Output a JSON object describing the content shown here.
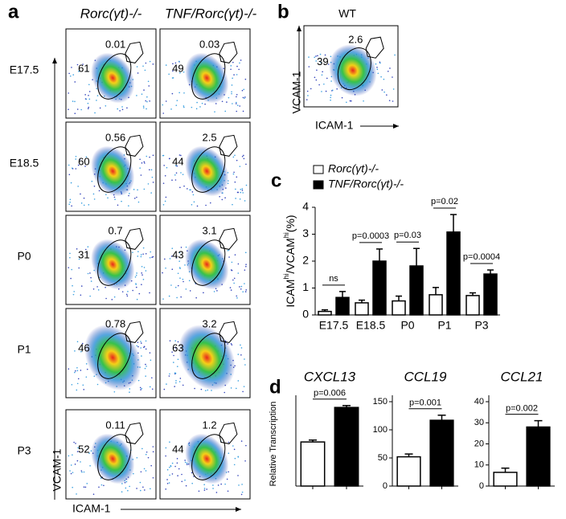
{
  "panel_labels": [
    "a",
    "b",
    "c",
    "d"
  ],
  "flow": {
    "columns": [
      "Rorc(γt)-/-",
      "TNF/Rorc(γt)-/-"
    ],
    "rows": [
      {
        "label": "E17.5",
        "gates": [
          [
            61,
            0.01
          ],
          [
            49,
            0.03
          ]
        ]
      },
      {
        "label": "E18.5",
        "gates": [
          [
            60,
            0.56
          ],
          [
            44,
            2.5
          ]
        ]
      },
      {
        "label": "P0",
        "gates": [
          [
            31,
            0.7
          ],
          [
            43,
            3.1
          ]
        ]
      },
      {
        "label": "P1",
        "gates": [
          [
            46,
            0.78
          ],
          [
            63,
            3.2
          ]
        ]
      },
      {
        "label": "P3",
        "gates": [
          [
            52,
            0.11
          ],
          [
            44,
            1.2
          ]
        ]
      }
    ],
    "y_axis": "VCAM-1",
    "x_axis": "ICAM-1",
    "wt": {
      "title": "WT",
      "gates": [
        39,
        2.6
      ],
      "y_axis": "VCAM-1",
      "x_axis": "ICAM-1"
    }
  },
  "chart_data": [
    {
      "type": "grouped-bar",
      "ylabel": [
        "ICAM",
        "hi",
        "/VCAM",
        "hi",
        "(%)"
      ],
      "categories": [
        "E17.5",
        "E18.5",
        "P0",
        "P1",
        "P3"
      ],
      "series": [
        {
          "name": "Rorc(γt)-/-",
          "color": "#ffffff",
          "values": [
            0.13,
            0.45,
            0.52,
            0.75,
            0.72
          ],
          "errors": [
            0.06,
            0.1,
            0.18,
            0.27,
            0.1
          ]
        },
        {
          "name": "TNF/Rorc(γt)-/-",
          "color": "#000000",
          "values": [
            0.65,
            2.0,
            1.82,
            3.08,
            1.52
          ],
          "errors": [
            0.22,
            0.45,
            0.65,
            0.65,
            0.15
          ]
        }
      ],
      "annotations": [
        "ns",
        "p=0.0003",
        "p=0.03",
        "p=0.02",
        "p=0.0004"
      ],
      "ylim": [
        0,
        4
      ],
      "yticks": [
        0,
        1,
        2,
        3,
        4
      ]
    },
    {
      "type": "bar",
      "title": "CXCL13",
      "ylabel": "Relative Transcription",
      "categories": [
        null,
        null
      ],
      "values": [
        11.5,
        20.5
      ],
      "errors": [
        0.5,
        0.5
      ],
      "colors": [
        "#ffffff",
        "#000000"
      ],
      "annotation": "p=0.006",
      "ylim": [
        0,
        22
      ]
    },
    {
      "type": "bar",
      "title": "CCL19",
      "categories": [
        null,
        null
      ],
      "values": [
        52,
        117
      ],
      "errors": [
        5,
        9
      ],
      "colors": [
        "#ffffff",
        "#000000"
      ],
      "annotation": "p=0.001",
      "ylim": [
        0,
        150
      ],
      "yticks": [
        0,
        50,
        100,
        150
      ]
    },
    {
      "type": "bar",
      "title": "CCL21",
      "categories": [
        null,
        null
      ],
      "values": [
        6.5,
        28
      ],
      "errors": [
        2,
        3
      ],
      "colors": [
        "#ffffff",
        "#000000"
      ],
      "annotation": "p=0.002",
      "ylim": [
        0,
        40
      ],
      "yticks": [
        0,
        10,
        20,
        30,
        40
      ]
    }
  ]
}
